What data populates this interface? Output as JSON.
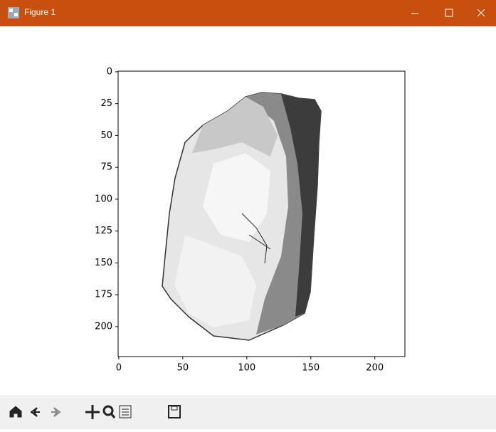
{
  "window": {
    "title": "Figure 1"
  },
  "chart_data": {
    "type": "image",
    "xlim": [
      -0.5,
      223.5
    ],
    "ylim": [
      223.5,
      -0.5
    ],
    "xticks": [
      0,
      50,
      100,
      150,
      200
    ],
    "yticks": [
      0,
      25,
      50,
      75,
      100,
      125,
      150,
      175,
      200
    ]
  }
}
